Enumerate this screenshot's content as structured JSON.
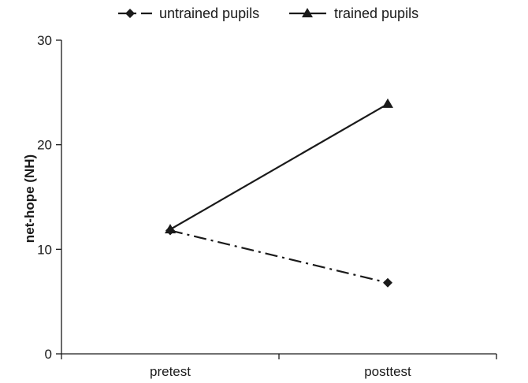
{
  "chart_data": {
    "type": "line",
    "title": "",
    "xlabel": "",
    "ylabel": "net-hope (NH)",
    "categories": [
      "pretest",
      "posttest"
    ],
    "ylim": [
      0,
      30
    ],
    "yticks": [
      0,
      10,
      20,
      30
    ],
    "grid": false,
    "legend_position": "top",
    "series": [
      {
        "name": "untrained pupils",
        "values": [
          11.8,
          6.8
        ],
        "marker": "diamond",
        "line_style": "dash-dot",
        "color": "#1a1a1a"
      },
      {
        "name": "trained pupils",
        "values": [
          11.9,
          23.9
        ],
        "marker": "triangle",
        "line_style": "solid",
        "color": "#1a1a1a"
      }
    ]
  }
}
